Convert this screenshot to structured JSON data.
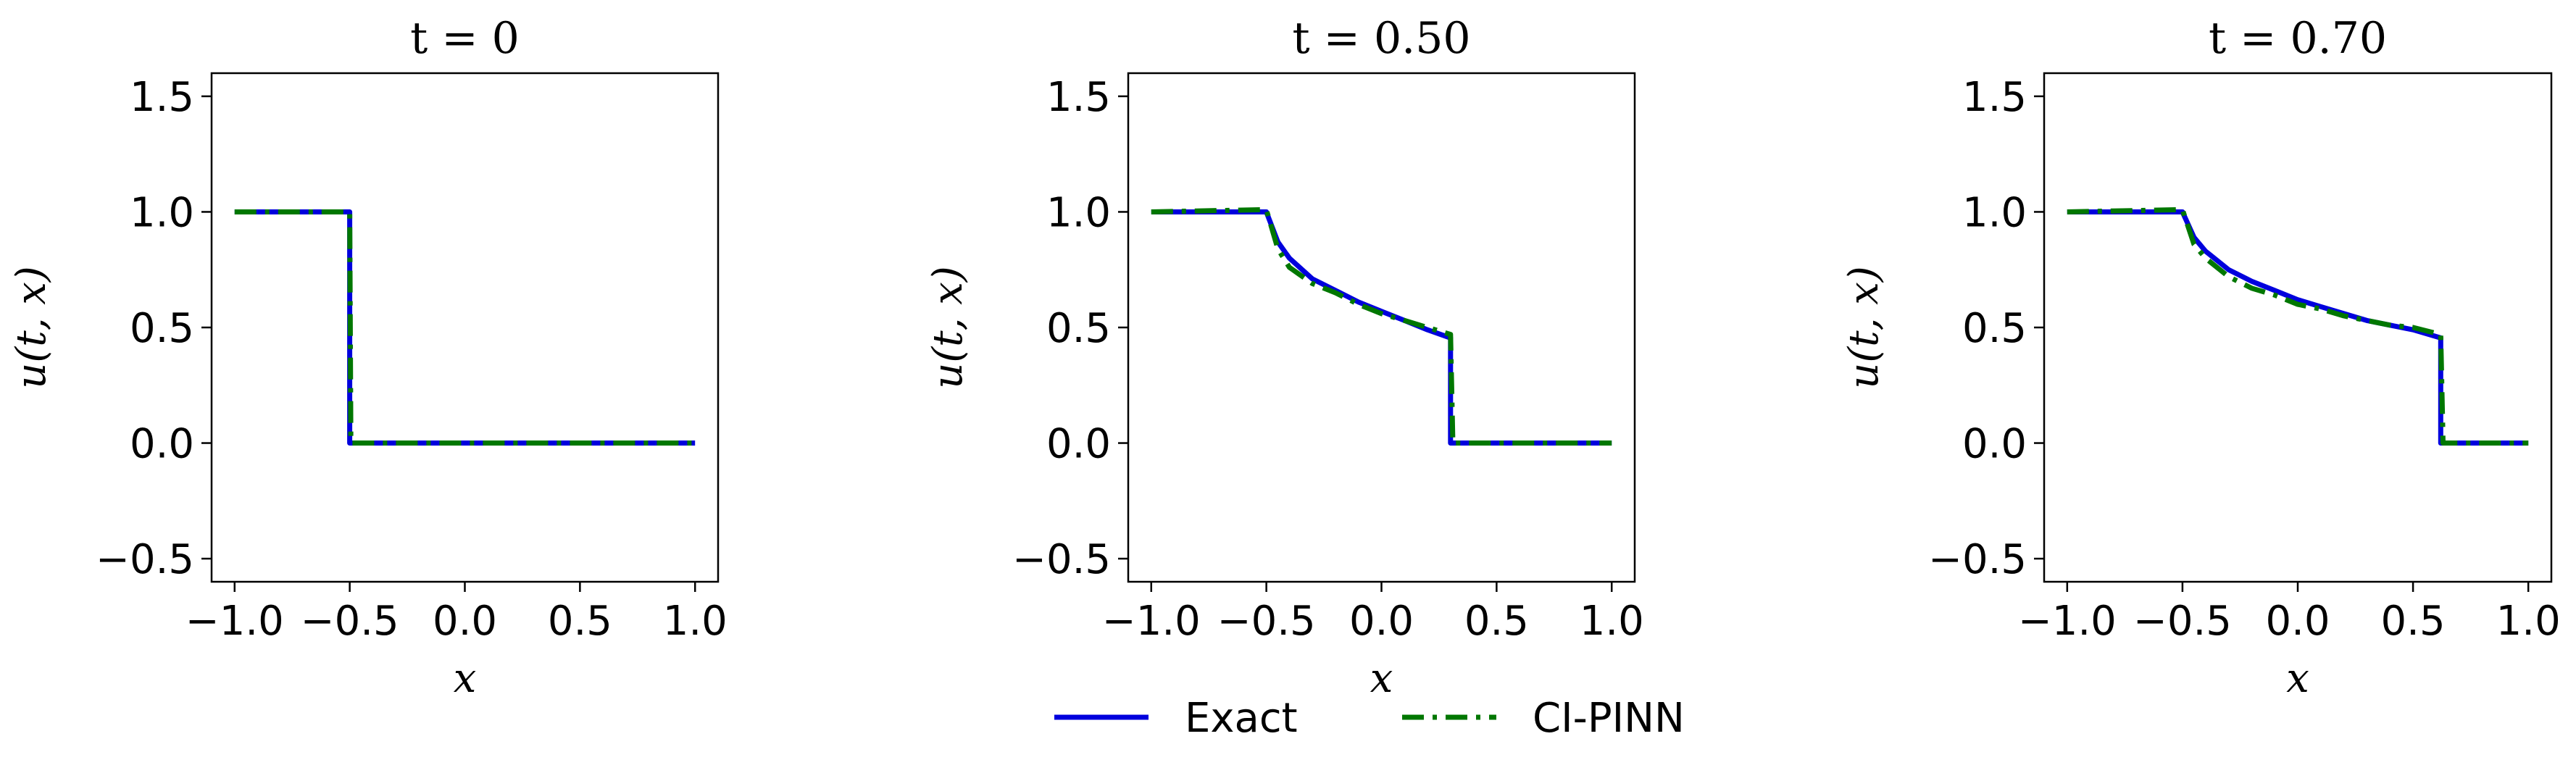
{
  "chart_data": [
    {
      "type": "line",
      "title": "t = 0",
      "xlabel": "x",
      "ylabel": "u(t, x)",
      "xlim": [
        -1.1,
        1.1
      ],
      "ylim": [
        -0.6,
        1.6
      ],
      "xticks": [
        -1.0,
        -0.5,
        0.0,
        0.5,
        1.0
      ],
      "xtick_labels": [
        "−1.0",
        "−0.5",
        "0.0",
        "0.5",
        "1.0"
      ],
      "yticks": [
        -0.5,
        0.0,
        0.5,
        1.0,
        1.5
      ],
      "ytick_labels": [
        "−0.5",
        "0.0",
        "0.5",
        "1.0",
        "1.5"
      ],
      "grid": false,
      "series": [
        {
          "name": "Exact",
          "color": "#0000dd",
          "style": "solid",
          "x": [
            -1.0,
            -0.5,
            -0.5,
            1.0
          ],
          "y": [
            1.0,
            1.0,
            0.0,
            0.0
          ]
        },
        {
          "name": "CI-PINN",
          "color": "#007700",
          "style": "dashdot",
          "x": [
            -1.0,
            -0.5,
            -0.495,
            1.0
          ],
          "y": [
            1.0,
            1.0,
            0.0,
            0.0
          ]
        }
      ]
    },
    {
      "type": "line",
      "title": "t = 0.50",
      "xlabel": "x",
      "ylabel": "u(t, x)",
      "xlim": [
        -1.1,
        1.1
      ],
      "ylim": [
        -0.6,
        1.6
      ],
      "xticks": [
        -1.0,
        -0.5,
        0.0,
        0.5,
        1.0
      ],
      "xtick_labels": [
        "−1.0",
        "−0.5",
        "0.0",
        "0.5",
        "1.0"
      ],
      "yticks": [
        -0.5,
        0.0,
        0.5,
        1.0,
        1.5
      ],
      "ytick_labels": [
        "−0.5",
        "0.0",
        "0.5",
        "1.0",
        "1.5"
      ],
      "grid": false,
      "series": [
        {
          "name": "Exact",
          "color": "#0000dd",
          "style": "solid",
          "x": [
            -1.0,
            -0.5,
            -0.45,
            -0.4,
            -0.3,
            -0.2,
            -0.1,
            0.0,
            0.1,
            0.2,
            0.3,
            0.3,
            1.0
          ],
          "y": [
            1.0,
            1.0,
            0.87,
            0.8,
            0.71,
            0.66,
            0.61,
            0.57,
            0.53,
            0.49,
            0.455,
            0.0,
            0.0
          ]
        },
        {
          "name": "CI-PINN",
          "color": "#007700",
          "style": "dashdot",
          "x": [
            -1.0,
            -0.5,
            -0.45,
            -0.4,
            -0.3,
            -0.2,
            -0.1,
            0.0,
            0.1,
            0.2,
            0.3,
            0.31,
            1.0
          ],
          "y": [
            1.0,
            1.01,
            0.84,
            0.76,
            0.69,
            0.65,
            0.6,
            0.56,
            0.53,
            0.5,
            0.47,
            0.0,
            0.0
          ]
        }
      ]
    },
    {
      "type": "line",
      "title": "t = 0.70",
      "xlabel": "x",
      "ylabel": "u(t, x)",
      "xlim": [
        -1.1,
        1.1
      ],
      "ylim": [
        -0.6,
        1.6
      ],
      "xticks": [
        -1.0,
        -0.5,
        0.0,
        0.5,
        1.0
      ],
      "xtick_labels": [
        "−1.0",
        "−0.5",
        "0.0",
        "0.5",
        "1.0"
      ],
      "yticks": [
        -0.5,
        0.0,
        0.5,
        1.0,
        1.5
      ],
      "ytick_labels": [
        "−0.5",
        "0.0",
        "0.5",
        "1.0",
        "1.5"
      ],
      "grid": false,
      "series": [
        {
          "name": "Exact",
          "color": "#0000dd",
          "style": "solid",
          "x": [
            -1.0,
            -0.5,
            -0.45,
            -0.4,
            -0.3,
            -0.2,
            -0.1,
            0.0,
            0.1,
            0.2,
            0.3,
            0.4,
            0.5,
            0.62,
            0.62,
            1.0
          ],
          "y": [
            1.0,
            1.0,
            0.89,
            0.83,
            0.75,
            0.7,
            0.66,
            0.62,
            0.59,
            0.56,
            0.53,
            0.51,
            0.49,
            0.455,
            0.0,
            0.0
          ]
        },
        {
          "name": "CI-PINN",
          "color": "#007700",
          "style": "dashdot",
          "x": [
            -1.0,
            -0.5,
            -0.45,
            -0.4,
            -0.3,
            -0.2,
            -0.1,
            0.0,
            0.1,
            0.2,
            0.3,
            0.4,
            0.5,
            0.62,
            0.63,
            1.0
          ],
          "y": [
            1.0,
            1.01,
            0.86,
            0.8,
            0.72,
            0.67,
            0.64,
            0.6,
            0.58,
            0.55,
            0.53,
            0.51,
            0.5,
            0.47,
            0.0,
            0.0
          ]
        }
      ]
    }
  ],
  "legend": {
    "placement": "bottom-center",
    "entries": [
      {
        "label": "Exact",
        "color": "#0000dd",
        "style": "solid"
      },
      {
        "label": "CI-PINN",
        "color": "#007700",
        "style": "dashdot"
      }
    ]
  }
}
